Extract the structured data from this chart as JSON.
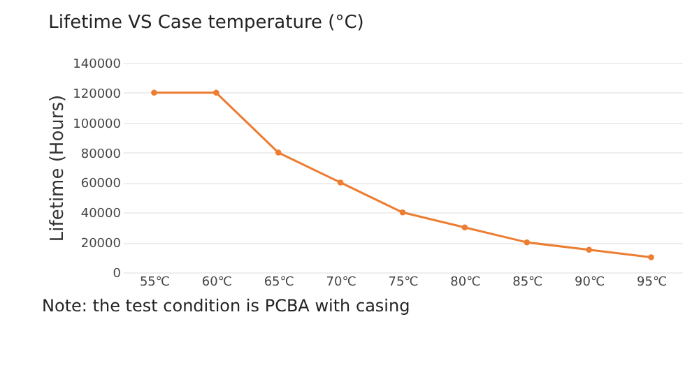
{
  "chart_data": {
    "type": "line",
    "title": "Lifetime VS Case temperature (°C)",
    "ylabel": "Lifetime (Hours)",
    "categories": [
      "55℃",
      "60℃",
      "65℃",
      "70℃",
      "75℃",
      "80℃",
      "85℃",
      "90℃",
      "95℃"
    ],
    "series": [
      {
        "color": "#ed7d31",
        "values": [
          120000,
          120000,
          80000,
          60000,
          40000,
          30000,
          20000,
          15000,
          10000
        ]
      }
    ],
    "ylim": [
      0,
      140000
    ],
    "yticks": [
      0,
      20000,
      40000,
      60000,
      80000,
      100000,
      120000,
      140000
    ],
    "grid": "y",
    "marker": "circle",
    "line_style": "solid",
    "annotations": [
      "Note: the test condition is PCBA with casing"
    ]
  }
}
